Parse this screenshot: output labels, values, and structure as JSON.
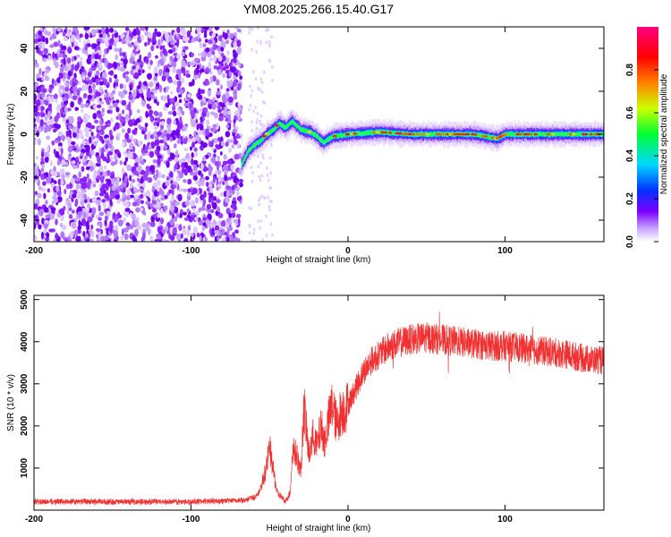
{
  "title": "YM08.2025.266.15.40.G17",
  "chart_data": [
    {
      "type": "heatmap",
      "name": "spectrogram",
      "xlabel": "Height of straight line (km)",
      "ylabel": "Frequency (Hz)",
      "xlim": [
        -200,
        163
      ],
      "ylim": [
        -50,
        50
      ],
      "xticks": [
        -200,
        -100,
        0,
        100
      ],
      "yticks": [
        -40,
        -20,
        0,
        20,
        40
      ],
      "colorbar": {
        "label": "Normalized spectral amplitude",
        "range": [
          0,
          1
        ],
        "ticks": [
          "0.0",
          "0.2",
          "0.4",
          "0.6",
          "0.8"
        ],
        "tick_values": [
          0.0,
          0.2,
          0.4,
          0.6,
          0.8
        ],
        "colors": [
          "#ffffff",
          "#7d00ff",
          "#0033ff",
          "#00d9ff",
          "#00ff33",
          "#ccff00",
          "#ff8000",
          "#ff0000",
          "#ff0080"
        ]
      },
      "noise_region_x": [
        -200,
        -68
      ],
      "sparse_noise_x": [
        -63,
        -48
      ],
      "signal_track": {
        "x": [
          -68,
          -64,
          -60,
          -56,
          -52,
          -48,
          -44,
          -40,
          -36,
          -30,
          -24,
          -20,
          -16,
          -10,
          0,
          20,
          40,
          60,
          80,
          95,
          100,
          120,
          140,
          163
        ],
        "freq_hz": [
          -14,
          -8,
          -5,
          -3,
          0,
          2,
          5,
          3,
          6,
          2,
          1,
          -1,
          -4,
          -1,
          0,
          1,
          0,
          0,
          0,
          -2,
          0,
          0,
          0,
          0
        ]
      }
    },
    {
      "type": "line",
      "name": "snr",
      "xlabel": "Height of straight line (km)",
      "ylabel": "SNR (10 * v/v)",
      "xlim": [
        -200,
        163
      ],
      "ylim": [
        0,
        5100
      ],
      "xticks": [
        -200,
        -100,
        0,
        100
      ],
      "yticks": [
        1000,
        2000,
        3000,
        4000,
        5000
      ],
      "color": "#f03232",
      "series": [
        {
          "name": "SNR",
          "x": [
            -200,
            -150,
            -100,
            -70,
            -65,
            -60,
            -57,
            -55,
            -52,
            -50,
            -47,
            -45,
            -42,
            -40,
            -37,
            -35,
            -32,
            -30,
            -28,
            -25,
            -22,
            -20,
            -17,
            -15,
            -12,
            -10,
            -7,
            -5,
            -2,
            0,
            5,
            10,
            15,
            20,
            25,
            30,
            40,
            50,
            60,
            70,
            80,
            90,
            100,
            110,
            120,
            130,
            140,
            150,
            163
          ],
          "values": [
            200,
            200,
            200,
            230,
            250,
            300,
            400,
            600,
            1000,
            1500,
            800,
            400,
            300,
            200,
            400,
            1500,
            1200,
            900,
            2500,
            1300,
            1800,
            1500,
            2000,
            1600,
            2200,
            2500,
            2000,
            2300,
            2400,
            2500,
            2900,
            3300,
            3550,
            3700,
            3850,
            3950,
            4050,
            4100,
            4050,
            4000,
            3950,
            3900,
            3900,
            3850,
            3800,
            3750,
            3700,
            3600,
            3550
          ]
        }
      ]
    }
  ]
}
